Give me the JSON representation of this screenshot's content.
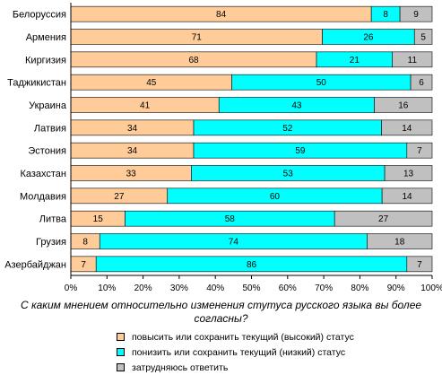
{
  "chart_data": {
    "type": "bar",
    "orientation": "horizontal",
    "stacked": "percent",
    "title": "С каким мнением относительно изменения стутуса русского языка вы более согласны?",
    "categories": [
      "Белоруссия",
      "Армения",
      "Киргизия",
      "Таджикистан",
      "Украина",
      "Латвия",
      "Эстония",
      "Казахстан",
      "Молдавия",
      "Литва",
      "Грузия",
      "Азербайджан"
    ],
    "series": [
      {
        "name": "повысить или сохранить текущий (высокий) статус",
        "color": "#FFCC99",
        "values": [
          84,
          71,
          68,
          45,
          41,
          34,
          34,
          33,
          27,
          15,
          8,
          7
        ]
      },
      {
        "name": "понизить или сохранить текущий (низкий) статус",
        "color": "#00FFFF",
        "values": [
          8,
          26,
          21,
          50,
          43,
          52,
          59,
          53,
          60,
          58,
          74,
          86
        ]
      },
      {
        "name": "затрудняюсь ответить",
        "color": "#C0C0C0",
        "values": [
          9,
          5,
          11,
          6,
          16,
          14,
          7,
          13,
          14,
          27,
          18,
          7
        ]
      }
    ],
    "xticks": [
      "0%",
      "10%",
      "20%",
      "30%",
      "40%",
      "50%",
      "60%",
      "70%",
      "80%",
      "90%",
      "100%"
    ],
    "xlim": [
      0,
      100
    ],
    "grid": false,
    "legend_position": "bottom"
  }
}
